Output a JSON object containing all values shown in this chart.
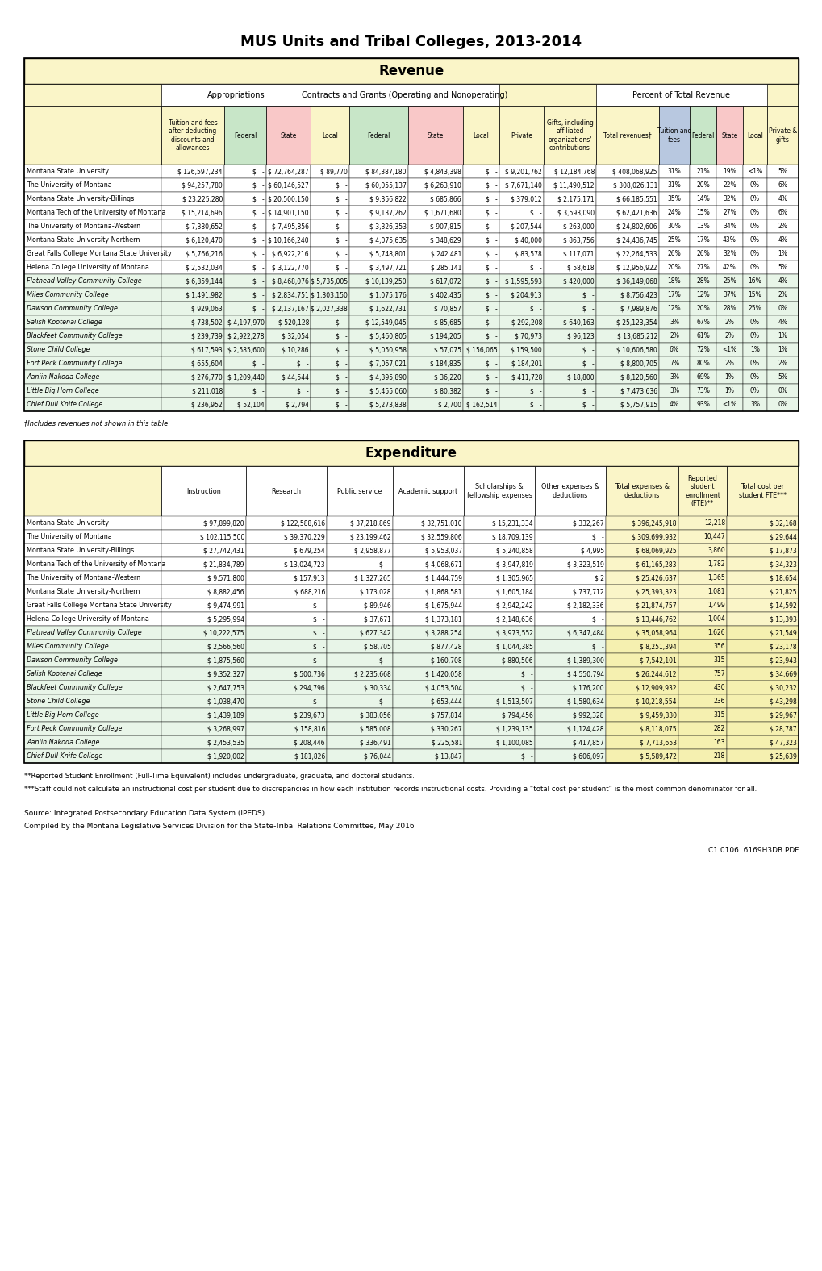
{
  "title": "MUS Units and Tribal Colleges, 2013-2014",
  "revenue_title": "Revenue",
  "expenditure_title": "Expenditure",
  "bg_yellow": "#faf5c8",
  "bg_light_yellow": "#fdfbe8",
  "col_green": "#c8e6c8",
  "col_pink": "#f9c8c8",
  "col_yellow": "#faf5c8",
  "col_blue": "#b8c8e0",
  "revenue_rows": [
    {
      "name": "Montana State University",
      "italic": false,
      "v": [
        "$ 126,597,234",
        "$   -",
        "$ 72,764,287",
        "$ 89,770",
        "$ 84,387,180",
        "$ 4,843,398",
        "$   -",
        "$ 9,201,762",
        "$ 12,184,768",
        "$ 408,068,925",
        "31%",
        "21%",
        "19%",
        "<1%",
        "5%"
      ]
    },
    {
      "name": "The University of Montana",
      "italic": false,
      "v": [
        "$ 94,257,780",
        "$   -",
        "$ 60,146,527",
        "$   -",
        "$ 60,055,137",
        "$ 6,263,910",
        "$   -",
        "$ 7,671,140",
        "$ 11,490,512",
        "$ 308,026,131",
        "31%",
        "20%",
        "22%",
        "0%",
        "6%"
      ]
    },
    {
      "name": "Montana State University-Billings",
      "italic": false,
      "v": [
        "$ 23,225,280",
        "$   -",
        "$ 20,500,150",
        "$   -",
        "$ 9,356,822",
        "$ 685,866",
        "$   -",
        "$ 379,012",
        "$ 2,175,171",
        "$ 66,185,551",
        "35%",
        "14%",
        "32%",
        "0%",
        "4%"
      ]
    },
    {
      "name": "Montana Tech of the University of Montana",
      "italic": false,
      "v": [
        "$ 15,214,696",
        "$   -",
        "$ 14,901,150",
        "$   -",
        "$ 9,137,262",
        "$ 1,671,680",
        "$   -",
        "$   -",
        "$ 3,593,090",
        "$ 62,421,636",
        "24%",
        "15%",
        "27%",
        "0%",
        "6%"
      ]
    },
    {
      "name": "The University of Montana-Western",
      "italic": false,
      "v": [
        "$ 7,380,652",
        "$   -",
        "$ 7,495,856",
        "$   -",
        "$ 3,326,353",
        "$ 907,815",
        "$   -",
        "$ 207,544",
        "$ 263,000",
        "$ 24,802,606",
        "30%",
        "13%",
        "34%",
        "0%",
        "2%"
      ]
    },
    {
      "name": "Montana State University-Northern",
      "italic": false,
      "v": [
        "$ 6,120,470",
        "$   -",
        "$ 10,166,240",
        "$   -",
        "$ 4,075,635",
        "$ 348,629",
        "$   -",
        "$ 40,000",
        "$ 863,756",
        "$ 24,436,745",
        "25%",
        "17%",
        "43%",
        "0%",
        "4%"
      ]
    },
    {
      "name": "Great Falls College Montana State University",
      "italic": false,
      "v": [
        "$ 5,766,216",
        "$   -",
        "$ 6,922,216",
        "$   -",
        "$ 5,748,801",
        "$ 242,481",
        "$   -",
        "$ 83,578",
        "$ 117,071",
        "$ 22,264,533",
        "26%",
        "26%",
        "32%",
        "0%",
        "1%"
      ]
    },
    {
      "name": "Helena College University of Montana",
      "italic": false,
      "v": [
        "$ 2,532,034",
        "$   -",
        "$ 3,122,770",
        "$   -",
        "$ 3,497,721",
        "$ 285,141",
        "$   -",
        "$   -",
        "$ 58,618",
        "$ 12,956,922",
        "20%",
        "27%",
        "42%",
        "0%",
        "5%"
      ]
    },
    {
      "name": "Flathead Valley Community College",
      "italic": true,
      "v": [
        "$ 6,859,144",
        "$   -",
        "$ 8,468,076",
        "$ 5,735,005",
        "$ 10,139,250",
        "$ 617,072",
        "$   -",
        "$ 1,595,593",
        "$ 420,000",
        "$ 36,149,068",
        "18%",
        "28%",
        "25%",
        "16%",
        "4%"
      ]
    },
    {
      "name": "Miles Community College",
      "italic": true,
      "v": [
        "$ 1,491,982",
        "$   -",
        "$ 2,834,751",
        "$ 1,303,150",
        "$ 1,075,176",
        "$ 402,435",
        "$   -",
        "$ 204,913",
        "$   -",
        "$ 8,756,423",
        "17%",
        "12%",
        "37%",
        "15%",
        "2%"
      ]
    },
    {
      "name": "Dawson Community College",
      "italic": true,
      "v": [
        "$ 929,063",
        "$   -",
        "$ 2,137,167",
        "$ 2,027,338",
        "$ 1,622,731",
        "$ 70,857",
        "$   -",
        "$   -",
        "$   -",
        "$ 7,989,876",
        "12%",
        "20%",
        "28%",
        "25%",
        "0%"
      ]
    },
    {
      "name": "Salish Kootenai College",
      "italic": true,
      "v": [
        "$ 738,502",
        "$ 4,197,970",
        "$ 520,128",
        "$   -",
        "$ 12,549,045",
        "$ 85,685",
        "$   -",
        "$ 292,208",
        "$ 640,163",
        "$ 25,123,354",
        "3%",
        "67%",
        "2%",
        "0%",
        "4%"
      ]
    },
    {
      "name": "Blackfeet Community College",
      "italic": true,
      "v": [
        "$ 239,739",
        "$ 2,922,278",
        "$ 32,054",
        "$   -",
        "$ 5,460,805",
        "$ 194,205",
        "$   -",
        "$ 70,973",
        "$ 96,123",
        "$ 13,685,212",
        "2%",
        "61%",
        "2%",
        "0%",
        "1%"
      ]
    },
    {
      "name": "Stone Child College",
      "italic": true,
      "v": [
        "$ 617,593",
        "$ 2,585,600",
        "$ 10,286",
        "$   -",
        "$ 5,050,958",
        "$ 57,075",
        "$ 156,065",
        "$ 159,500",
        "$   -",
        "$ 10,606,580",
        "6%",
        "72%",
        "<1%",
        "1%",
        "1%"
      ]
    },
    {
      "name": "Fort Peck Community College",
      "italic": true,
      "v": [
        "$ 655,604",
        "$   -",
        "$   -",
        "$   -",
        "$ 7,067,021",
        "$ 184,835",
        "$   -",
        "$ 184,201",
        "$   -",
        "$ 8,800,705",
        "7%",
        "80%",
        "2%",
        "0%",
        "2%"
      ]
    },
    {
      "name": "Aaniin Nakoda College",
      "italic": true,
      "v": [
        "$ 276,770",
        "$ 1,209,440",
        "$ 44,544",
        "$   -",
        "$ 4,395,890",
        "$ 36,220",
        "$   -",
        "$ 411,728",
        "$ 18,800",
        "$ 8,120,560",
        "3%",
        "69%",
        "1%",
        "0%",
        "5%"
      ]
    },
    {
      "name": "Little Big Horn College",
      "italic": true,
      "v": [
        "$ 211,018",
        "$   -",
        "$   -",
        "$   -",
        "$ 5,455,060",
        "$ 80,382",
        "$   -",
        "$   -",
        "$   -",
        "$ 7,473,636",
        "3%",
        "73%",
        "1%",
        "0%",
        "0%"
      ]
    },
    {
      "name": "Chief Dull Knife College",
      "italic": true,
      "v": [
        "$ 236,952",
        "$ 52,104",
        "$ 2,794",
        "$   -",
        "$ 5,273,838",
        "$ 2,700",
        "$ 162,514",
        "$   -",
        "$   -",
        "$ 5,757,915",
        "4%",
        "93%",
        "<1%",
        "3%",
        "0%"
      ]
    }
  ],
  "expenditure_rows": [
    {
      "name": "Montana State University",
      "italic": false,
      "v": [
        "$ 97,899,820",
        "$ 122,588,616",
        "$ 37,218,869",
        "$ 32,751,010",
        "$ 15,231,334",
        "$ 332,267",
        "$ 396,245,918",
        "12,218",
        "$ 32,168"
      ]
    },
    {
      "name": "The University of Montana",
      "italic": false,
      "v": [
        "$ 102,115,500",
        "$ 39,370,229",
        "$ 23,199,462",
        "$ 32,559,806",
        "$ 18,709,139",
        "$   -",
        "$ 309,699,932",
        "10,447",
        "$ 29,644"
      ]
    },
    {
      "name": "Montana State University-Billings",
      "italic": false,
      "v": [
        "$ 27,742,431",
        "$ 679,254",
        "$ 2,958,877",
        "$ 5,953,037",
        "$ 5,240,858",
        "$ 4,995",
        "$ 68,069,925",
        "3,860",
        "$ 17,873"
      ]
    },
    {
      "name": "Montana Tech of the University of Montana",
      "italic": false,
      "v": [
        "$ 21,834,789",
        "$ 13,024,723",
        "$   -",
        "$ 4,068,671",
        "$ 3,947,819",
        "$ 3,323,519",
        "$ 61,165,283",
        "1,782",
        "$ 34,323"
      ]
    },
    {
      "name": "The University of Montana-Western",
      "italic": false,
      "v": [
        "$ 9,571,800",
        "$ 157,913",
        "$ 1,327,265",
        "$ 1,444,759",
        "$ 1,305,965",
        "$ 2",
        "$ 25,426,637",
        "1,365",
        "$ 18,654"
      ]
    },
    {
      "name": "Montana State University-Northern",
      "italic": false,
      "v": [
        "$ 8,882,456",
        "$ 688,216",
        "$ 173,028",
        "$ 1,868,581",
        "$ 1,605,184",
        "$ 737,712",
        "$ 25,393,323",
        "1,081",
        "$ 21,825"
      ]
    },
    {
      "name": "Great Falls College Montana State University",
      "italic": false,
      "v": [
        "$ 9,474,991",
        "$   -",
        "$ 89,946",
        "$ 1,675,944",
        "$ 2,942,242",
        "$ 2,182,336",
        "$ 21,874,757",
        "1,499",
        "$ 14,592"
      ]
    },
    {
      "name": "Helena College University of Montana",
      "italic": false,
      "v": [
        "$ 5,295,994",
        "$   -",
        "$ 37,671",
        "$ 1,373,181",
        "$ 2,148,636",
        "$   -",
        "$ 13,446,762",
        "1,004",
        "$ 13,393"
      ]
    },
    {
      "name": "Flathead Valley Community College",
      "italic": true,
      "v": [
        "$ 10,222,575",
        "$   -",
        "$ 627,342",
        "$ 3,288,254",
        "$ 3,973,552",
        "$ 6,347,484",
        "$ 35,058,964",
        "1,626",
        "$ 21,549"
      ]
    },
    {
      "name": "Miles Community College",
      "italic": true,
      "v": [
        "$ 2,566,560",
        "$   -",
        "$ 58,705",
        "$ 877,428",
        "$ 1,044,385",
        "$   -",
        "$ 8,251,394",
        "356",
        "$ 23,178"
      ]
    },
    {
      "name": "Dawson Community College",
      "italic": true,
      "v": [
        "$ 1,875,560",
        "$   -",
        "$   -",
        "$ 160,708",
        "$ 880,506",
        "$ 1,389,300",
        "$ 7,542,101",
        "315",
        "$ 23,943"
      ]
    },
    {
      "name": "Salish Kootenai College",
      "italic": true,
      "v": [
        "$ 9,352,327",
        "$ 500,736",
        "$ 2,235,668",
        "$ 1,420,058",
        "$   -",
        "$ 4,550,794",
        "$ 26,244,612",
        "757",
        "$ 34,669"
      ]
    },
    {
      "name": "Blackfeet Community College",
      "italic": true,
      "v": [
        "$ 2,647,753",
        "$ 294,796",
        "$ 30,334",
        "$ 4,053,504",
        "$   -",
        "$ 176,200",
        "$ 12,909,932",
        "430",
        "$ 30,232"
      ]
    },
    {
      "name": "Stone Child College",
      "italic": true,
      "v": [
        "$ 1,038,470",
        "$   -",
        "$   -",
        "$ 653,444",
        "$ 1,513,507",
        "$ 1,580,634",
        "$ 10,218,554",
        "236",
        "$ 43,298"
      ]
    },
    {
      "name": "Little Big Horn College",
      "italic": true,
      "v": [
        "$ 1,439,189",
        "$ 239,673",
        "$ 383,056",
        "$ 757,814",
        "$ 794,456",
        "$ 992,328",
        "$ 9,459,830",
        "315",
        "$ 29,967"
      ]
    },
    {
      "name": "Fort Peck Community College",
      "italic": true,
      "v": [
        "$ 3,268,997",
        "$ 158,816",
        "$ 585,008",
        "$ 330,267",
        "$ 1,239,135",
        "$ 1,124,428",
        "$ 8,118,075",
        "282",
        "$ 28,787"
      ]
    },
    {
      "name": "Aaniin Nakoda College",
      "italic": true,
      "v": [
        "$ 2,453,535",
        "$ 208,446",
        "$ 336,491",
        "$ 225,581",
        "$ 1,100,085",
        "$ 417,857",
        "$ 7,713,653",
        "163",
        "$ 47,323"
      ]
    },
    {
      "name": "Chief Dull Knife College",
      "italic": true,
      "v": [
        "$ 1,920,002",
        "$ 181,826",
        "$ 76,044",
        "$ 13,847",
        "$   -",
        "$ 606,097",
        "$ 5,589,472",
        "218",
        "$ 25,639"
      ]
    }
  ]
}
